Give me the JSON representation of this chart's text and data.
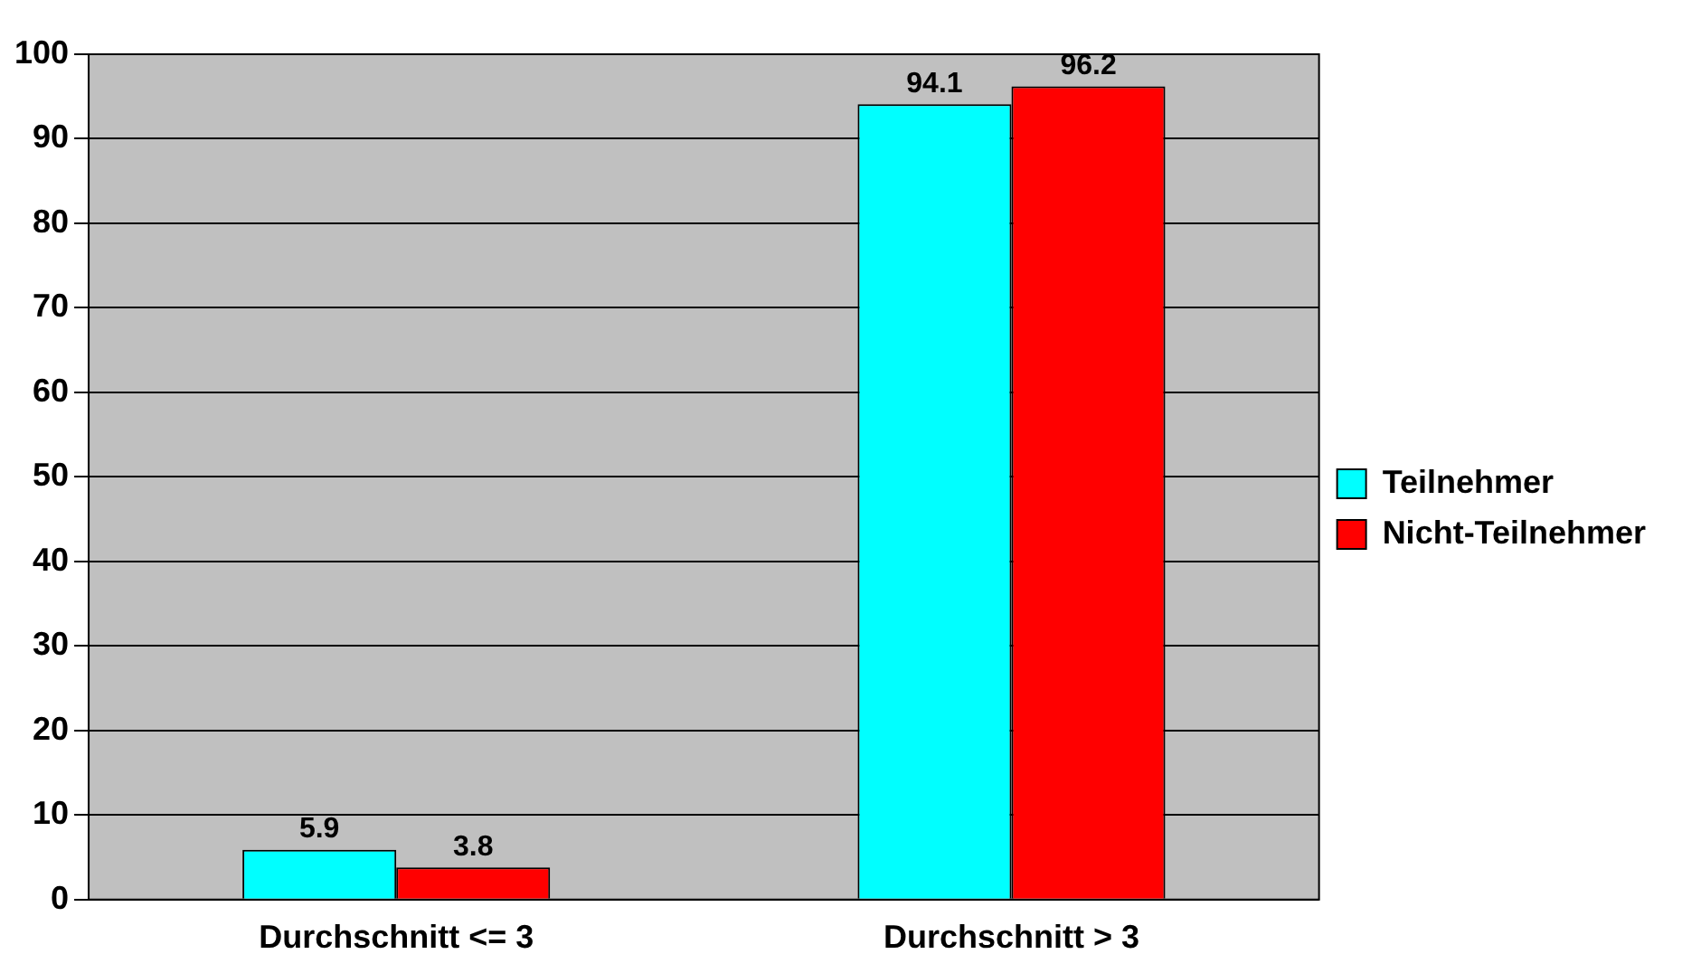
{
  "chart_data": {
    "type": "bar",
    "categories": [
      "Durchschnitt <= 3",
      "Durchschnitt > 3"
    ],
    "series": [
      {
        "name": "Teilnehmer",
        "color": "#00ffff",
        "values": [
          5.9,
          94.1
        ]
      },
      {
        "name": "Nicht-Teilnehmer",
        "color": "#ff0000",
        "values": [
          3.8,
          96.2
        ]
      }
    ],
    "ylim": [
      0,
      100
    ],
    "yticks": [
      0,
      10,
      20,
      30,
      40,
      50,
      60,
      70,
      80,
      90,
      100
    ],
    "grid": "y",
    "legend": "right",
    "data_labels": true
  }
}
